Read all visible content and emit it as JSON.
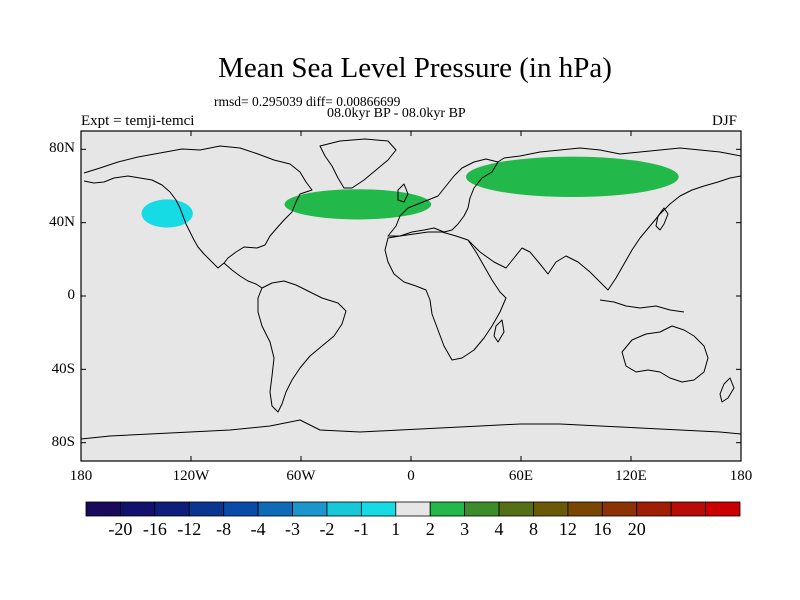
{
  "title": "Mean Sea Level Pressure (in hPa)",
  "stats_line": "rmsd= 0.295039 diff= 0.00866699",
  "period_line": "08.0kyr BP - 08.0kyr BP",
  "experiment": "Expt = temji-temci",
  "season": "DJF",
  "axes": {
    "lat_labels": [
      "80N",
      "40N",
      "0",
      "40S",
      "80S"
    ],
    "lon_labels": [
      "180",
      "120W",
      "60W",
      "0",
      "60E",
      "120E",
      "180"
    ]
  },
  "colorbar": {
    "labels": [
      "-20",
      "-16",
      "-12",
      "-8",
      "-4",
      "-3",
      "-2",
      "-1",
      "1",
      "2",
      "3",
      "4",
      "8",
      "12",
      "16",
      "20"
    ],
    "colors": [
      "#1a0a5c",
      "#12126e",
      "#0d1f7a",
      "#0a3590",
      "#0a4aa8",
      "#0f6ab8",
      "#1a96cc",
      "#17c8d8",
      "#16dbe4",
      "#e6e6e6",
      "#22b84a",
      "#3c8c2a",
      "#556f16",
      "#6a5a08",
      "#7a4604",
      "#8c3204",
      "#a01e04",
      "#b80c06",
      "#cc0000"
    ]
  },
  "colors": {
    "map_background": "#e6e6e6",
    "positive_anomaly": "#22b84a",
    "negative_anomaly": "#16dbe4"
  },
  "anomalies": [
    {
      "name": "north-pacific-low",
      "sign": "negative",
      "lon_center": -133,
      "lat_center": 45,
      "lon_span": 14,
      "lat_span": 14
    },
    {
      "name": "north-atlantic-high",
      "sign": "positive",
      "lon_center": -29,
      "lat_center": 50,
      "lon_span": 40,
      "lat_span": 15
    },
    {
      "name": "siberian-high",
      "sign": "positive",
      "lon_center": 88,
      "lat_center": 65,
      "lon_span": 58,
      "lat_span": 20
    }
  ]
}
